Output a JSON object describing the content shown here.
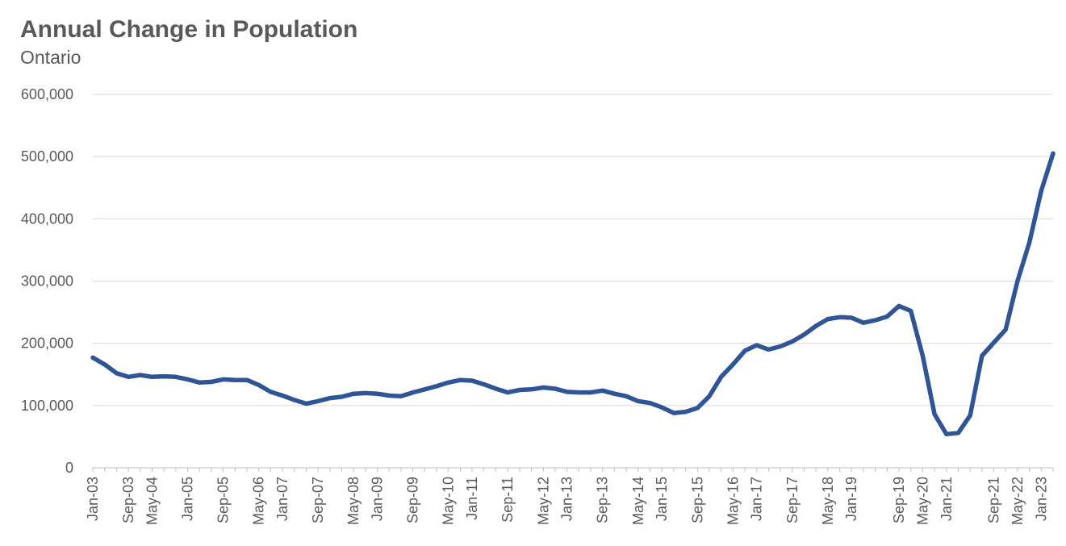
{
  "chart_data": {
    "type": "line",
    "title": "Annual Change in Population",
    "subtitle": "Ontario",
    "xlabel": "",
    "ylabel": "",
    "ylim": [
      0,
      600000
    ],
    "yticks": [
      0,
      100000,
      200000,
      300000,
      400000,
      500000,
      600000
    ],
    "ytick_labels": [
      "0",
      "100,000",
      "200,000",
      "300,000",
      "400,000",
      "500,000",
      "600,000"
    ],
    "xtick_labels": [
      "Jan-03",
      "Sep-03",
      "May-04",
      "Jan-05",
      "Sep-05",
      "May-06",
      "Jan-07",
      "Sep-07",
      "May-08",
      "Jan-09",
      "Sep-09",
      "May-10",
      "Jan-11",
      "Sep-11",
      "May-12",
      "Jan-13",
      "Sep-13",
      "May-14",
      "Jan-15",
      "Sep-15",
      "May-16",
      "Jan-17",
      "Sep-17",
      "May-18",
      "Jan-19",
      "Sep-19",
      "May-20",
      "Jan-21",
      "Sep-21",
      "May-22",
      "Jan-23"
    ],
    "grid": true,
    "line_color": "#2F5597",
    "series": [
      {
        "name": "Ontario",
        "x": [
          "Jan-03",
          "Apr-03",
          "Jul-03",
          "Oct-03",
          "Jan-04",
          "Apr-04",
          "Jul-04",
          "Oct-04",
          "Jan-05",
          "Apr-05",
          "Jul-05",
          "Oct-05",
          "Jan-06",
          "Apr-06",
          "Jul-06",
          "Oct-06",
          "Jan-07",
          "Apr-07",
          "Jul-07",
          "Oct-07",
          "Jan-08",
          "Apr-08",
          "Jul-08",
          "Oct-08",
          "Jan-09",
          "Apr-09",
          "Jul-09",
          "Oct-09",
          "Jan-10",
          "Apr-10",
          "Jul-10",
          "Oct-10",
          "Jan-11",
          "Apr-11",
          "Jul-11",
          "Oct-11",
          "Jan-12",
          "Apr-12",
          "Jul-12",
          "Oct-12",
          "Jan-13",
          "Apr-13",
          "Jul-13",
          "Oct-13",
          "Jan-14",
          "Apr-14",
          "Jul-14",
          "Oct-14",
          "Jan-15",
          "Apr-15",
          "Jul-15",
          "Oct-15",
          "Jan-16",
          "Apr-16",
          "Jul-16",
          "Oct-16",
          "Jan-17",
          "Apr-17",
          "Jul-17",
          "Oct-17",
          "Jan-18",
          "Apr-18",
          "Jul-18",
          "Oct-18",
          "Jan-19",
          "Apr-19",
          "Jul-19",
          "Oct-19",
          "Jan-20",
          "Apr-20",
          "Jul-20",
          "Oct-20",
          "Jan-21",
          "Apr-21",
          "Jul-21",
          "Oct-21",
          "Jan-22",
          "Apr-22",
          "Jul-22",
          "Oct-22",
          "Jan-23",
          "Apr-23"
        ],
        "values": [
          177000,
          166000,
          152000,
          146000,
          149000,
          146000,
          147000,
          146000,
          142000,
          137000,
          138000,
          142000,
          141000,
          141000,
          133000,
          122000,
          116000,
          109000,
          103000,
          107000,
          112000,
          114000,
          119000,
          120000,
          119000,
          116000,
          115000,
          121000,
          126000,
          131000,
          137000,
          141000,
          140000,
          134000,
          127000,
          121000,
          125000,
          126000,
          129000,
          127000,
          122000,
          121000,
          121000,
          124000,
          119000,
          115000,
          107000,
          104000,
          97000,
          88000,
          90000,
          96000,
          115000,
          146000,
          166000,
          188000,
          197000,
          190000,
          195000,
          203000,
          214000,
          228000,
          239000,
          242000,
          241000,
          233000,
          237000,
          243000,
          260000,
          252000,
          180000,
          86000,
          54000,
          56000,
          84000,
          180000,
          201000,
          222000,
          300000,
          362000,
          445000,
          505000
        ]
      }
    ]
  }
}
